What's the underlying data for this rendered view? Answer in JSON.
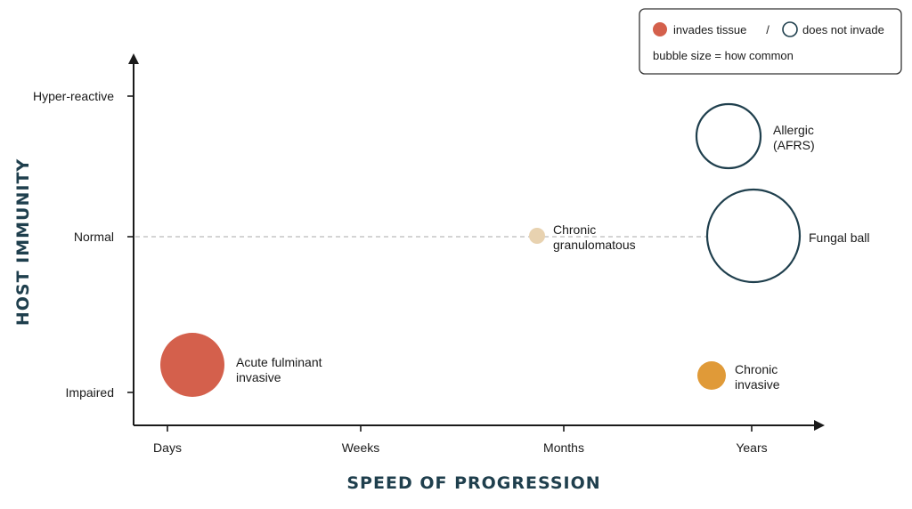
{
  "chart_data": {
    "type": "scatter",
    "xlabel": "SPEED OF PROGRESSION",
    "ylabel": "HOST IMMUNITY",
    "x_categories": [
      "Days",
      "Weeks",
      "Months",
      "Years"
    ],
    "y_categories": [
      "Impaired",
      "Normal",
      "Hyper-reactive"
    ],
    "reference_line": {
      "y": "Normal",
      "style": "dashed"
    },
    "legend": {
      "filled_label": "invades tissue",
      "separator": "/",
      "outline_label": "does not invade",
      "size_note": "bubble size = how common",
      "position": "top-right"
    },
    "points": [
      {
        "label_lines": [
          "Acute fulminant",
          "invasive"
        ],
        "x": 0.25,
        "y": 0.9,
        "relative_size": 1.0,
        "invades": true,
        "color": "#d4604c"
      },
      {
        "label_lines": [
          "Chronic",
          "granulomatous"
        ],
        "x": 2.75,
        "y": 2.0,
        "relative_size": 0.2,
        "invades": true,
        "color": "#e8d2b0"
      },
      {
        "label_lines": [
          "Chronic",
          "invasive"
        ],
        "x": 3.55,
        "y": 0.9,
        "relative_size": 0.4,
        "invades": true,
        "color": "#e09a38"
      },
      {
        "label_lines": [
          "Allergic",
          "(AFRS)"
        ],
        "x": 3.7,
        "y": 3.25,
        "relative_size": 1.0,
        "invades": false,
        "color": "#1f3f4d"
      },
      {
        "label_lines": [
          "Fungal ball"
        ],
        "x": 3.75,
        "y": 2.0,
        "relative_size": 1.45,
        "invades": false,
        "color": "#1f3f4d"
      }
    ],
    "colors": {
      "axis": "#1a1a1a",
      "title": "#1f3f4d",
      "legend_filled": "#d4604c",
      "legend_outline": "#1f3f4d",
      "reference_line": "#bbbbbb"
    }
  }
}
